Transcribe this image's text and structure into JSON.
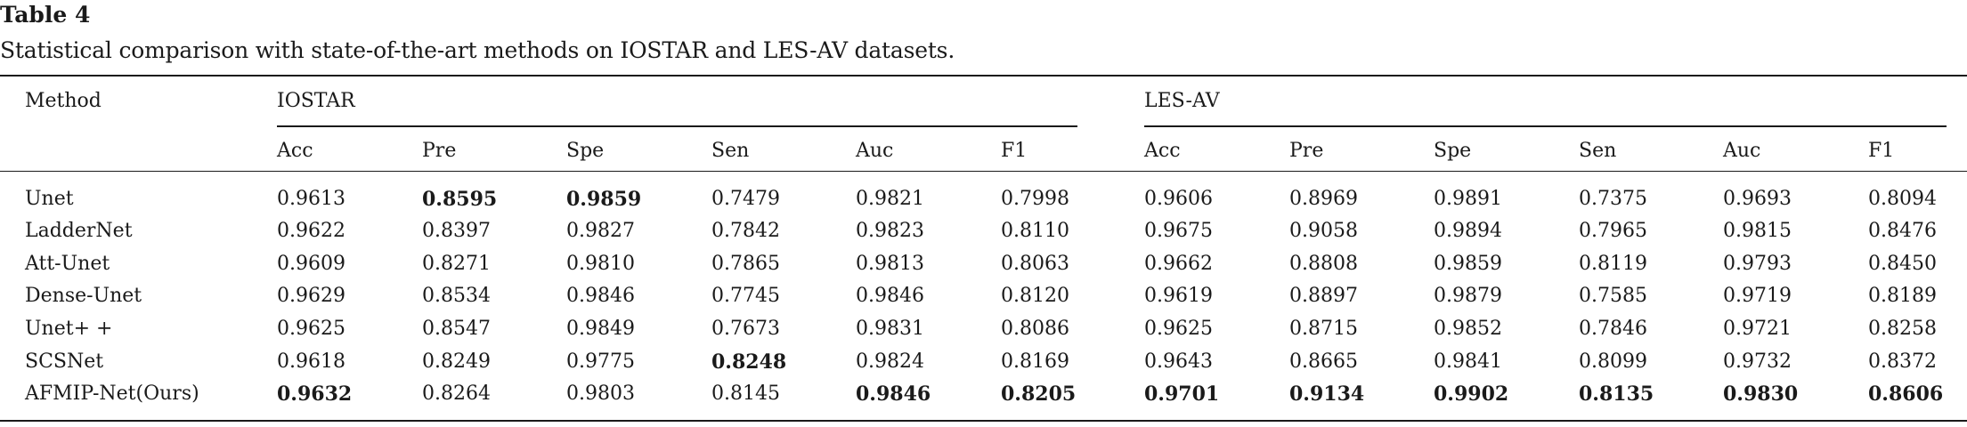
{
  "caption": {
    "label": "Table 4",
    "text": "Statistical comparison with state-of-the-art methods on IOSTAR and LES-AV datasets."
  },
  "table": {
    "method_header": "Method",
    "groups": [
      "IOSTAR",
      "LES-AV"
    ],
    "columns": [
      "Acc",
      "Pre",
      "Spe",
      "Sen",
      "Auc",
      "F1",
      "Acc",
      "Pre",
      "Spe",
      "Sen",
      "Auc",
      "F1"
    ],
    "rows": [
      {
        "method": "Unet",
        "values": [
          "0.9613",
          "0.8595",
          "0.9859",
          "0.7479",
          "0.9821",
          "0.7998",
          "0.9606",
          "0.8969",
          "0.9891",
          "0.7375",
          "0.9693",
          "0.8094"
        ],
        "bold": [
          1,
          2
        ]
      },
      {
        "method": "LadderNet",
        "values": [
          "0.9622",
          "0.8397",
          "0.9827",
          "0.7842",
          "0.9823",
          "0.8110",
          "0.9675",
          "0.9058",
          "0.9894",
          "0.7965",
          "0.9815",
          "0.8476"
        ],
        "bold": []
      },
      {
        "method": "Att-Unet",
        "values": [
          "0.9609",
          "0.8271",
          "0.9810",
          "0.7865",
          "0.9813",
          "0.8063",
          "0.9662",
          "0.8808",
          "0.9859",
          "0.8119",
          "0.9793",
          "0.8450"
        ],
        "bold": []
      },
      {
        "method": "Dense-Unet",
        "values": [
          "0.9629",
          "0.8534",
          "0.9846",
          "0.7745",
          "0.9846",
          "0.8120",
          "0.9619",
          "0.8897",
          "0.9879",
          "0.7585",
          "0.9719",
          "0.8189"
        ],
        "bold": []
      },
      {
        "method": "Unet+ +",
        "values": [
          "0.9625",
          "0.8547",
          "0.9849",
          "0.7673",
          "0.9831",
          "0.8086",
          "0.9625",
          "0.8715",
          "0.9852",
          "0.7846",
          "0.9721",
          "0.8258"
        ],
        "bold": []
      },
      {
        "method": "SCSNet",
        "values": [
          "0.9618",
          "0.8249",
          "0.9775",
          "0.8248",
          "0.9824",
          "0.8169",
          "0.9643",
          "0.8665",
          "0.9841",
          "0.8099",
          "0.9732",
          "0.8372"
        ],
        "bold": [
          3
        ]
      },
      {
        "method": "AFMIP-Net(Ours)",
        "values": [
          "0.9632",
          "0.8264",
          "0.9803",
          "0.8145",
          "0.9846",
          "0.8205",
          "0.9701",
          "0.9134",
          "0.9902",
          "0.8135",
          "0.9830",
          "0.8606"
        ],
        "bold": [
          0,
          4,
          5,
          6,
          7,
          8,
          9,
          10,
          11
        ]
      }
    ]
  }
}
